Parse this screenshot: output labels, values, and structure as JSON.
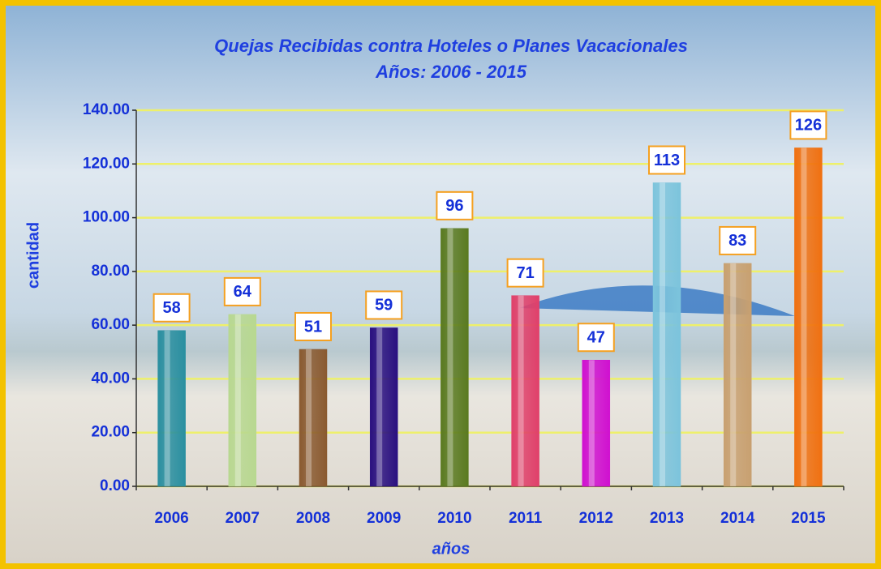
{
  "chart_data": {
    "type": "bar",
    "title": "Quejas Recibidas contra Hoteles o Planes Vacacionales",
    "subtitle": "Años: 2006 - 2015",
    "x_label": "años",
    "y_label": "cantidad",
    "categories": [
      "2006",
      "2007",
      "2008",
      "2009",
      "2010",
      "2011",
      "2012",
      "2013",
      "2014",
      "2015"
    ],
    "values": [
      58,
      64,
      51,
      59,
      96,
      71,
      47,
      113,
      83,
      126
    ],
    "colors": [
      "#2a8fa0",
      "#b8d890",
      "#8a5a30",
      "#2a1080",
      "#5a7a20",
      "#e0406a",
      "#d010d0",
      "#7cc4dc",
      "#c8a070",
      "#f07010"
    ],
    "ylim": [
      0,
      140
    ],
    "yticks": [
      {
        "value": 0,
        "label": "0.00"
      },
      {
        "value": 20,
        "label": "20.00"
      },
      {
        "value": 40,
        "label": "40.00"
      },
      {
        "value": 60,
        "label": "60.00"
      },
      {
        "value": 80,
        "label": "80.00"
      },
      {
        "value": 100,
        "label": "100.00"
      },
      {
        "value": 120,
        "label": "120.00"
      },
      {
        "value": 140,
        "label": "140.00"
      }
    ],
    "grid": true
  }
}
